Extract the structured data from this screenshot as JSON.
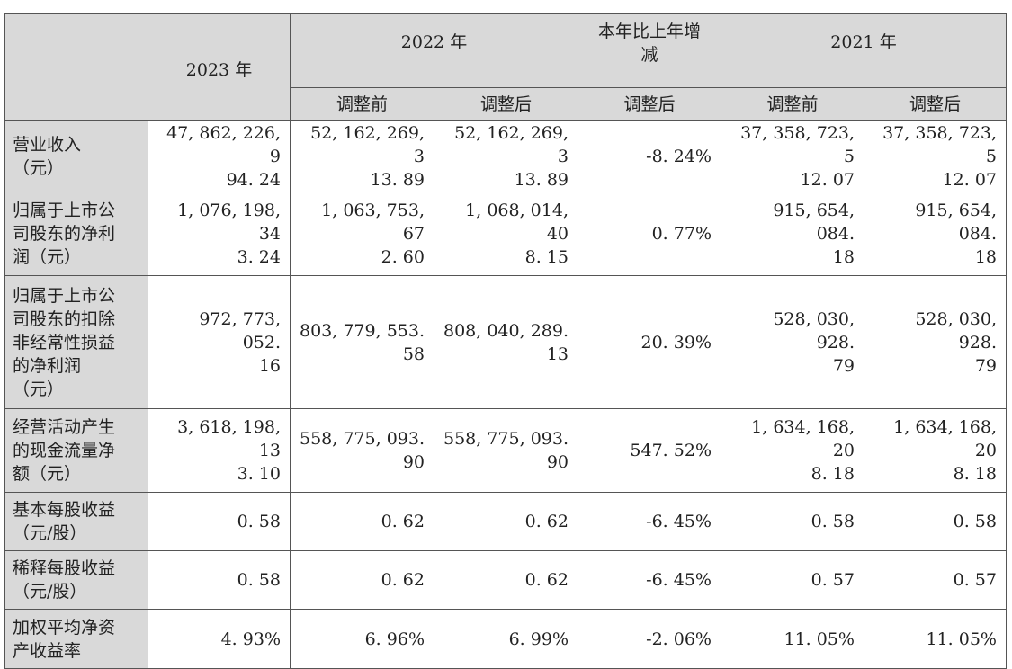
{
  "header": {
    "col_2023": "2023 年",
    "col_2022": "2022 年",
    "col_change": "本年比上年增\n减",
    "col_2021": "2021 年",
    "sub_before": "调整前",
    "sub_after": "调整后"
  },
  "rows": [
    {
      "label": "营业收入\n（元）",
      "v2023": "47, 862, 226, 9\n94. 24",
      "v2022a": "52, 162, 269, 3\n13. 89",
      "v2022b": "52, 162, 269, 3\n13. 89",
      "change": "-8. 24%",
      "v2021a": "37, 358, 723, 5\n12. 07",
      "v2021b": "37, 358, 723, 5\n12. 07"
    },
    {
      "label": "归属于上市公\n司股东的净利\n润（元）",
      "v2023": "1, 076, 198, 34\n3. 24",
      "v2022a": "1, 063, 753, 67\n2. 60",
      "v2022b": "1, 068, 014, 40\n8. 15",
      "change": "0. 77%",
      "v2021a": "915, 654, 084.\n18",
      "v2021b": "915, 654, 084.\n18"
    },
    {
      "label": "归属于上市公\n司股东的扣除\n非经常性损益\n的净利润\n（元）",
      "v2023": "972, 773, 052.\n16",
      "v2022a": "803, 779, 553.\n58",
      "v2022b": "808, 040, 289.\n13",
      "change": "20. 39%",
      "v2021a": "528, 030, 928.\n79",
      "v2021b": "528, 030, 928.\n79"
    },
    {
      "label": "经营活动产生\n的现金流量净\n额（元）",
      "v2023": "3, 618, 198, 13\n3. 10",
      "v2022a": "558, 775, 093.\n90",
      "v2022b": "558, 775, 093.\n90",
      "change": "547. 52%",
      "v2021a": "1, 634, 168, 20\n8. 18",
      "v2021b": "1, 634, 168, 20\n8. 18"
    },
    {
      "label": "基本每股收益\n（元/股）",
      "v2023": "0. 58",
      "v2022a": "0. 62",
      "v2022b": "0. 62",
      "change": "-6. 45%",
      "v2021a": "0. 58",
      "v2021b": "0. 58"
    },
    {
      "label": "稀释每股收益\n（元/股）",
      "v2023": "0. 58",
      "v2022a": "0. 62",
      "v2022b": "0. 62",
      "change": "-6. 45%",
      "v2021a": "0. 57",
      "v2021b": "0. 57"
    },
    {
      "label": "加权平均净资\n产收益率",
      "v2023": "4. 93%",
      "v2022a": "6. 96%",
      "v2022b": "6. 99%",
      "change": "-2. 06%",
      "v2021a": "11. 05%",
      "v2021b": "11. 05%"
    }
  ]
}
